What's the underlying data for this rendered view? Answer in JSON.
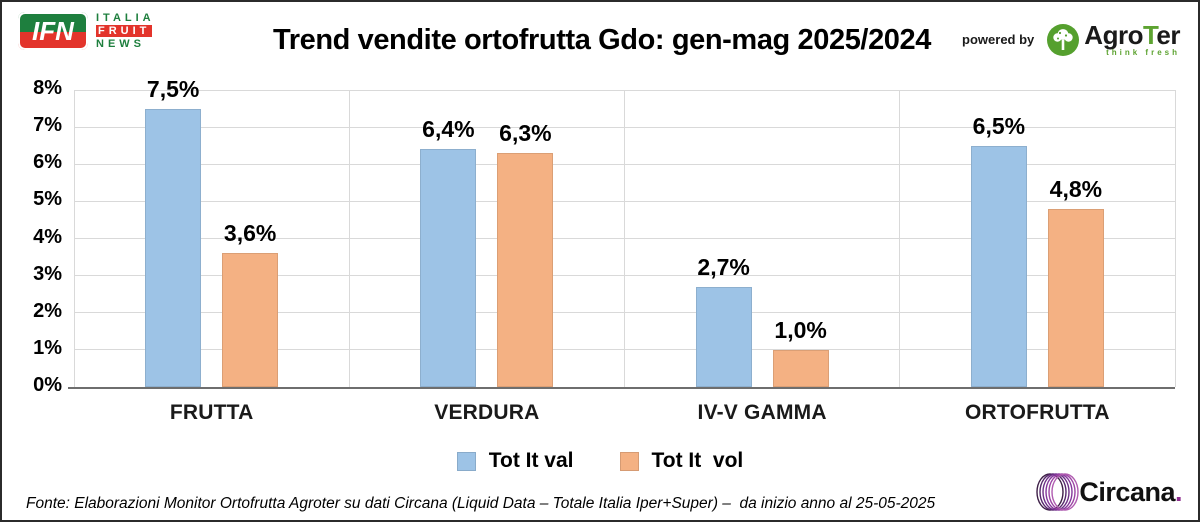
{
  "header": {
    "title": "Trend vendite ortofrutta Gdo: gen-mag 2025/2024",
    "ifn_logo": {
      "initials": "IFN",
      "line1": "ITALIA",
      "line2": "FRUIT",
      "line3": "NEWS"
    },
    "powered_by": "powered by",
    "agroter": {
      "prefix": "Agro",
      "t": "T",
      "suffix": "er",
      "tagline": "think fresh"
    }
  },
  "chart_data": {
    "type": "bar",
    "title": "Trend vendite ortofrutta Gdo: gen-mag 2025/2024",
    "categories": [
      "FRUTTA",
      "VERDURA",
      "IV-V GAMMA",
      "ORTOFRUTTA"
    ],
    "series": [
      {
        "name": "Tot It val",
        "color": "#9DC3E6",
        "values": [
          7.5,
          6.4,
          2.7,
          6.5
        ],
        "labels": [
          "7,5%",
          "6,4%",
          "2,7%",
          "6,5%"
        ]
      },
      {
        "name": "Tot It  vol",
        "color": "#F4B183",
        "values": [
          3.6,
          6.3,
          1.0,
          4.8
        ],
        "labels": [
          "3,6%",
          "6,3%",
          "1,0%",
          "4,8%"
        ]
      }
    ],
    "xlabel": "",
    "ylabel": "",
    "ylim": [
      0,
      8
    ],
    "ytick_step": 1,
    "ytick_labels": [
      "0%",
      "1%",
      "2%",
      "3%",
      "4%",
      "5%",
      "6%",
      "7%",
      "8%"
    ],
    "grid": true,
    "legend_position": "bottom"
  },
  "colors": {
    "series_val": "#9DC3E6",
    "series_vol": "#F4B183",
    "gridline": "#D9D9D9",
    "axis": "#6E6E6E",
    "ifn_green": "#1E7F3E",
    "ifn_red": "#E3342B",
    "agroter_green": "#5DA331",
    "circana_purple": "#8E2E8E"
  },
  "footer": {
    "source": "Fonte: Elaborazioni Monitor Ortofrutta Agroter su dati Circana (Liquid Data – Totale Italia Iper+Super) –  da inizio anno al 25-05-2025",
    "circana": {
      "text": "Circana",
      "dot": "."
    }
  }
}
